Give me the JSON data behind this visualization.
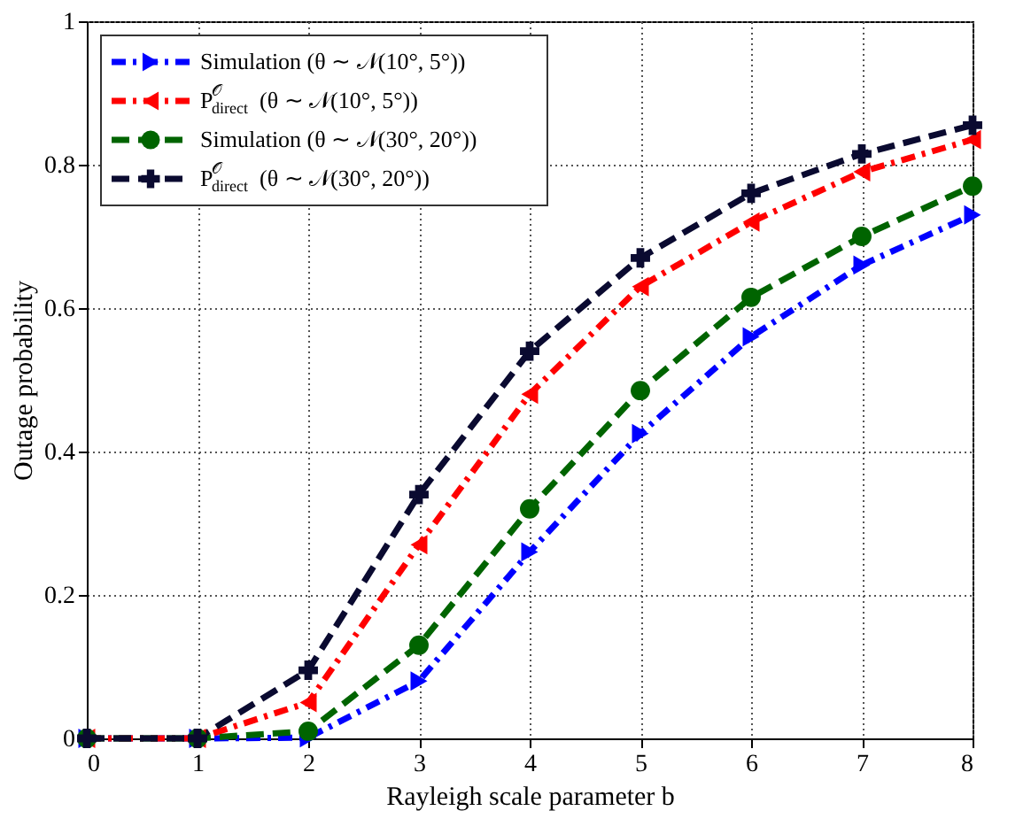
{
  "chart_data": {
    "type": "line",
    "xlabel": "Rayleigh scale parameter b",
    "ylabel": "Outage probability",
    "x": [
      0,
      1,
      2,
      3,
      4,
      5,
      6,
      7,
      8
    ],
    "xlim": [
      0,
      8
    ],
    "xticks": [
      0,
      1,
      2,
      3,
      4,
      5,
      6,
      7,
      8
    ],
    "ylim": [
      0,
      1
    ],
    "yticks": [
      0,
      0.2,
      0.4,
      0.6,
      0.8,
      1
    ],
    "grid": true,
    "legend": "top left",
    "series": [
      {
        "name": "Simulation (θ ∼ 𝒩(10°, 5°))",
        "color": "#0000ff",
        "marker": "triangle-right",
        "line_style": "dashdot",
        "values": [
          0,
          0,
          0.001,
          0.08,
          0.26,
          0.425,
          0.56,
          0.66,
          0.73
        ]
      },
      {
        "name": "P$^{𝒪}$$_{direct}$(θ ∼ 𝒩(10°, 5°))",
        "color": "#ff0000",
        "marker": "triangle-left",
        "line_style": "dashdot",
        "values": [
          0,
          0,
          0.05,
          0.27,
          0.48,
          0.63,
          0.72,
          0.79,
          0.835
        ]
      },
      {
        "name": "Simulation (θ ∼ 𝒩(30°, 20°))",
        "color": "#006400",
        "marker": "circle",
        "line_style": "dashed",
        "values": [
          0,
          0,
          0.01,
          0.13,
          0.32,
          0.485,
          0.615,
          0.7,
          0.77
        ]
      },
      {
        "name": "P$^{𝒪}$$_{direct}$(θ ∼ 𝒩(30°, 20°))",
        "color": "#0a0a30",
        "marker": "cross",
        "line_style": "dashed",
        "values": [
          0,
          0,
          0.095,
          0.34,
          0.54,
          0.67,
          0.76,
          0.815,
          0.855
        ]
      }
    ]
  }
}
